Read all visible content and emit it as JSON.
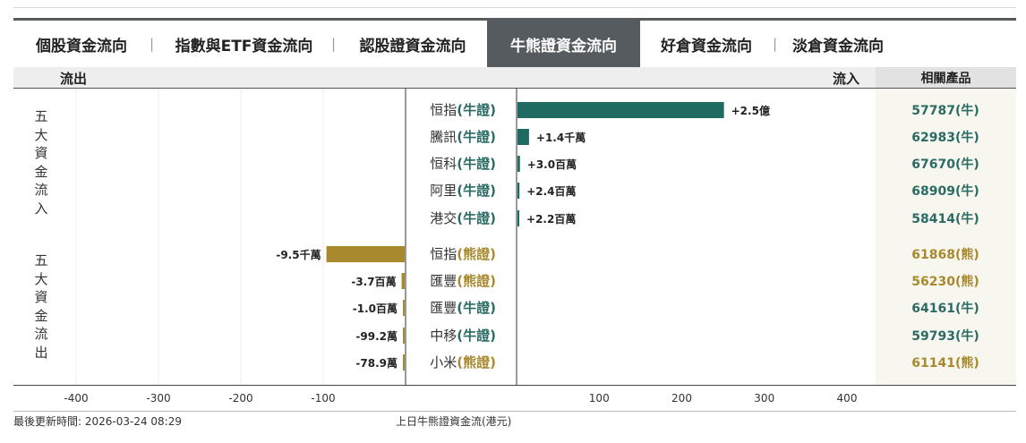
{
  "tabs": [
    {
      "label": "個股資金流向",
      "active": false
    },
    {
      "label": "指數與ETF資金流向",
      "active": false
    },
    {
      "label": "認股證資金流向",
      "active": false
    },
    {
      "label": "牛熊證資金流向",
      "active": true
    },
    {
      "label": "好倉資金流向",
      "active": false
    },
    {
      "label": "淡倉資金流向",
      "active": false
    }
  ],
  "header": {
    "outflow": "流出",
    "inflow": "流入",
    "related": "相關產品"
  },
  "side_labels": {
    "inflow": "五大資金流入",
    "outflow": "五大資金流出"
  },
  "footer": {
    "updated": "最後更新時間: 2026-03-24 08:29",
    "caption": "上日牛熊證資金流(港元)"
  },
  "colors": {
    "inflow": "#1f6b62",
    "outflow": "#a8892e",
    "bull": "#2a6b63",
    "bear": "#a8892e"
  },
  "chart_data": {
    "type": "bar",
    "orientation": "diverging-horizontal",
    "x_ticks_left": [
      -400,
      -300,
      -200,
      -100
    ],
    "x_ticks_right": [
      100,
      200,
      300,
      400
    ],
    "unit": "百萬港元",
    "rows": [
      {
        "name": "恒指",
        "kind": "(牛證)",
        "type": "bull",
        "value": 250,
        "label": "+2.5億",
        "product": "57787(牛)",
        "ptype": "bull"
      },
      {
        "name": "騰訊",
        "kind": "(牛證)",
        "type": "bull",
        "value": 14,
        "label": "+1.4千萬",
        "product": "62983(牛)",
        "ptype": "bull"
      },
      {
        "name": "恒科",
        "kind": "(牛證)",
        "type": "bull",
        "value": 3.0,
        "label": "+3.0百萬",
        "product": "67670(牛)",
        "ptype": "bull"
      },
      {
        "name": "阿里",
        "kind": "(牛證)",
        "type": "bull",
        "value": 2.4,
        "label": "+2.4百萬",
        "product": "68909(牛)",
        "ptype": "bull"
      },
      {
        "name": "港交",
        "kind": "(牛證)",
        "type": "bull",
        "value": 2.2,
        "label": "+2.2百萬",
        "product": "58414(牛)",
        "ptype": "bull"
      },
      {
        "name": "恒指",
        "kind": "(熊證)",
        "type": "bear",
        "value": -95,
        "label": "-9.5千萬",
        "product": "61868(熊)",
        "ptype": "bear"
      },
      {
        "name": "匯豐",
        "kind": "(熊證)",
        "type": "bear",
        "value": -3.7,
        "label": "-3.7百萬",
        "product": "56230(熊)",
        "ptype": "bear"
      },
      {
        "name": "匯豐",
        "kind": "(牛證)",
        "type": "bull",
        "value": -1.0,
        "label": "-1.0百萬",
        "product": "64161(牛)",
        "ptype": "bull"
      },
      {
        "name": "中移",
        "kind": "(牛證)",
        "type": "bull",
        "value": -0.992,
        "label": "-99.2萬",
        "product": "59793(牛)",
        "ptype": "bull"
      },
      {
        "name": "小米",
        "kind": "(熊證)",
        "type": "bear",
        "value": -0.789,
        "label": "-78.9萬",
        "product": "61141(熊)",
        "ptype": "bear"
      }
    ]
  }
}
